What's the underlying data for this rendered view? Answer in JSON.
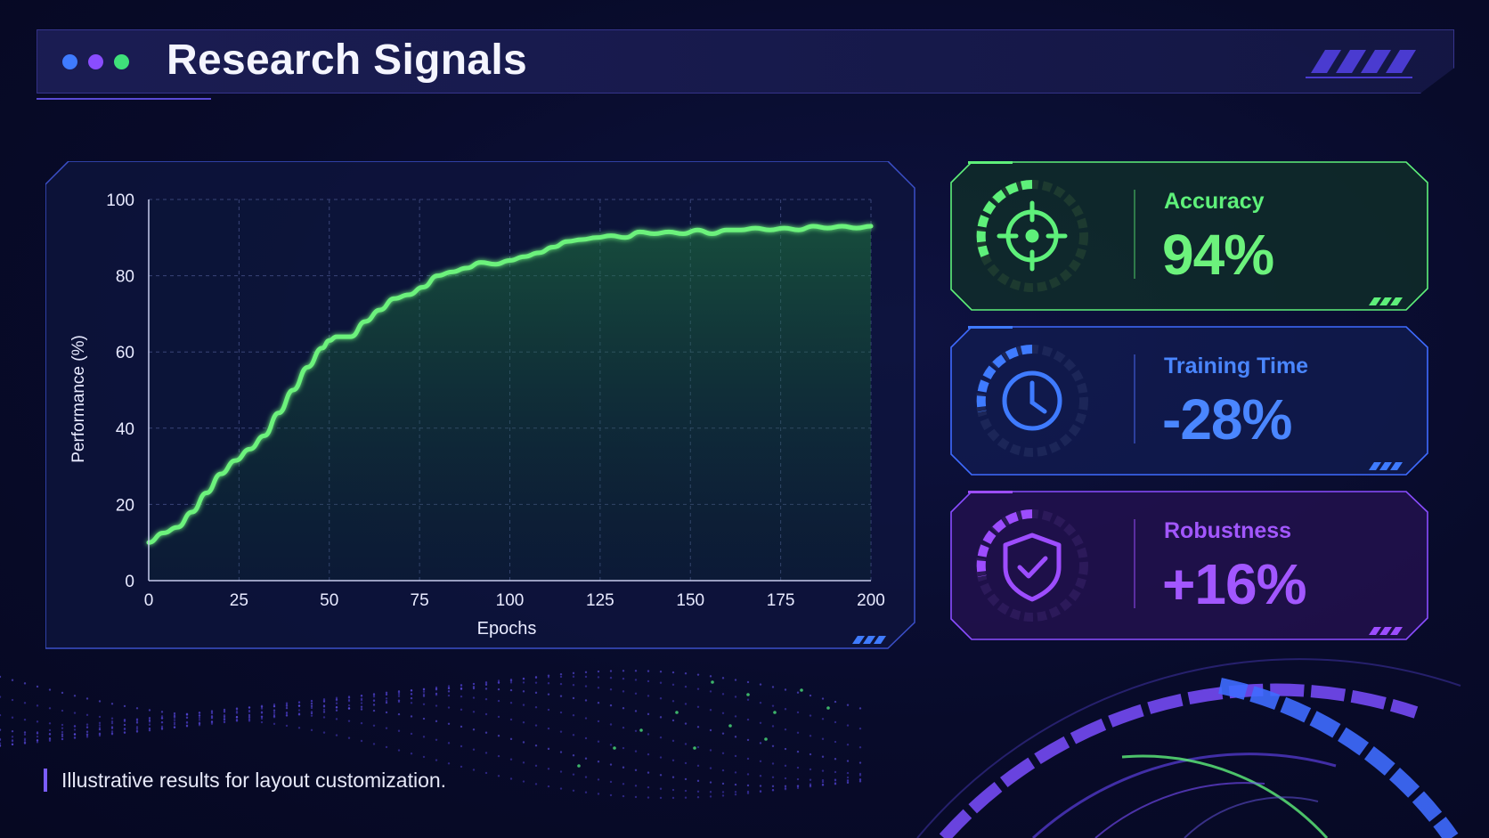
{
  "header": {
    "title": "Research Signals",
    "dot_colors": [
      "#3f7bff",
      "#8a4dff",
      "#3fe07a"
    ]
  },
  "cards": [
    {
      "label": "Accuracy",
      "value": "94%",
      "icon": "target-crosshair-icon",
      "color": "#5ef07a"
    },
    {
      "label": "Training Time",
      "value": "-28%",
      "icon": "clock-icon",
      "color": "#3f7bff"
    },
    {
      "label": "Robustness",
      "value": "+16%",
      "icon": "shield-check-icon",
      "color": "#9d4dff"
    }
  ],
  "caption": "Illustrative results for layout customization.",
  "chart_data": {
    "type": "area",
    "xlabel": "Epochs",
    "ylabel": "Performance (%)",
    "xlim": [
      0,
      200
    ],
    "ylim": [
      0,
      100
    ],
    "xticks": [
      0,
      25,
      50,
      75,
      100,
      125,
      150,
      175,
      200
    ],
    "yticks": [
      0,
      20,
      40,
      60,
      80,
      100
    ],
    "grid": true,
    "line_color": "#6cf27c",
    "x": [
      0,
      4,
      8,
      12,
      16,
      20,
      24,
      28,
      32,
      36,
      40,
      44,
      48,
      50,
      52,
      56,
      60,
      64,
      68,
      72,
      76,
      80,
      84,
      88,
      92,
      96,
      100,
      104,
      108,
      112,
      116,
      120,
      124,
      128,
      132,
      136,
      140,
      144,
      148,
      152,
      156,
      160,
      164,
      168,
      172,
      176,
      180,
      184,
      188,
      192,
      196,
      200
    ],
    "y": [
      10,
      12.5,
      14,
      18,
      23,
      28,
      31.5,
      34.5,
      38,
      44,
      50,
      56,
      61,
      63,
      64,
      64,
      68,
      71,
      74,
      75,
      77,
      80,
      81,
      82,
      83.5,
      83,
      84,
      85,
      86,
      87.5,
      89,
      89.5,
      90,
      90.5,
      90,
      91.5,
      91,
      91.5,
      91,
      92,
      91,
      92,
      92,
      92.5,
      92,
      92.5,
      92,
      93,
      92.5,
      93,
      92.5,
      93
    ]
  }
}
